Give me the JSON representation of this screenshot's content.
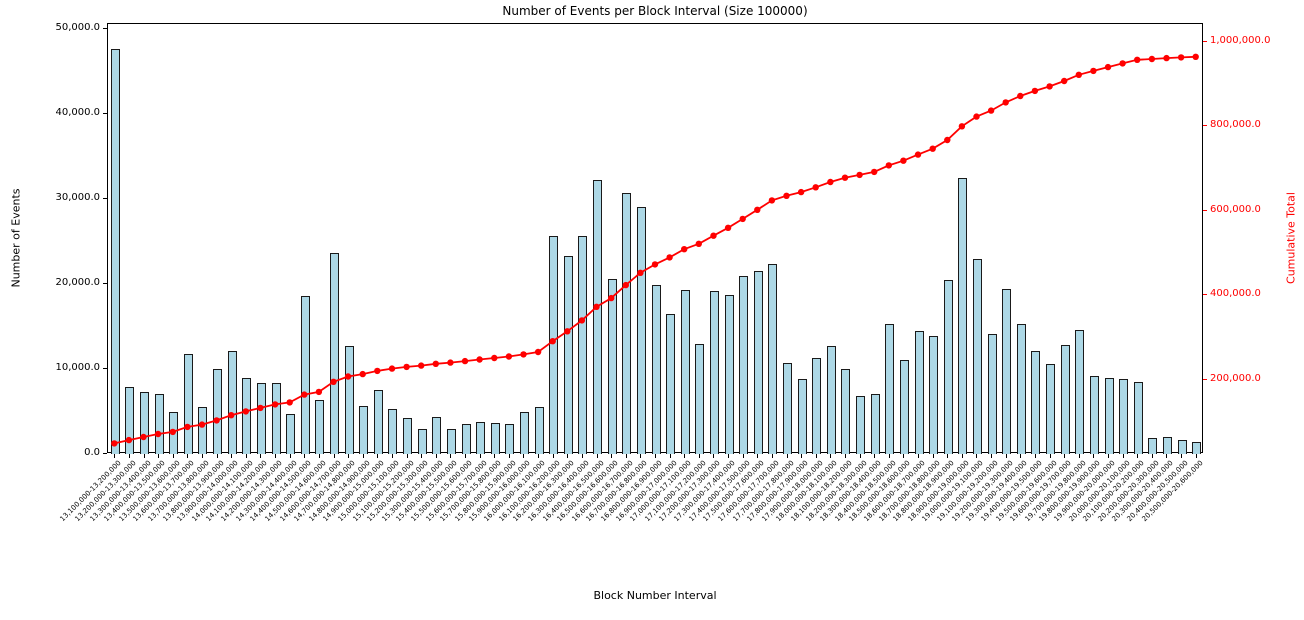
{
  "chart_data": {
    "type": "bar+line",
    "title": "Number of Events per Block Interval (Size 100000)",
    "xlabel": "Block Number Interval",
    "ylabel_left": "Number of Events",
    "ylabel_right": "Cumulative Total",
    "legend_position": "none",
    "grid": false,
    "categories": [
      "13,100,000-13,200,000",
      "13,200,000-13,300,000",
      "13,300,000-13,400,000",
      "13,400,000-13,500,000",
      "13,500,000-13,600,000",
      "13,600,000-13,700,000",
      "13,700,000-13,800,000",
      "13,800,000-13,900,000",
      "13,900,000-14,000,000",
      "14,000,000-14,100,000",
      "14,100,000-14,200,000",
      "14,200,000-14,300,000",
      "14,300,000-14,400,000",
      "14,400,000-14,500,000",
      "14,500,000-14,600,000",
      "14,600,000-14,700,000",
      "14,700,000-14,800,000",
      "14,800,000-14,900,000",
      "14,900,000-15,000,000",
      "15,000,000-15,100,000",
      "15,100,000-15,200,000",
      "15,200,000-15,300,000",
      "15,300,000-15,400,000",
      "15,400,000-15,500,000",
      "15,500,000-15,600,000",
      "15,600,000-15,700,000",
      "15,700,000-15,800,000",
      "15,800,000-15,900,000",
      "15,900,000-16,000,000",
      "16,000,000-16,100,000",
      "16,100,000-16,200,000",
      "16,200,000-16,300,000",
      "16,300,000-16,400,000",
      "16,400,000-16,500,000",
      "16,500,000-16,600,000",
      "16,600,000-16,700,000",
      "16,700,000-16,800,000",
      "16,800,000-16,900,000",
      "16,900,000-17,000,000",
      "17,000,000-17,100,000",
      "17,100,000-17,200,000",
      "17,200,000-17,300,000",
      "17,300,000-17,400,000",
      "17,400,000-17,500,000",
      "17,500,000-17,600,000",
      "17,600,000-17,700,000",
      "17,700,000-17,800,000",
      "17,800,000-17,900,000",
      "17,900,000-18,000,000",
      "18,000,000-18,100,000",
      "18,100,000-18,200,000",
      "18,200,000-18,300,000",
      "18,300,000-18,400,000",
      "18,400,000-18,500,000",
      "18,500,000-18,600,000",
      "18,600,000-18,700,000",
      "18,700,000-18,800,000",
      "18,800,000-18,900,000",
      "18,900,000-19,000,000",
      "19,000,000-19,100,000",
      "19,100,000-19,200,000",
      "19,200,000-19,300,000",
      "19,300,000-19,400,000",
      "19,400,000-19,500,000",
      "19,500,000-19,600,000",
      "19,600,000-19,700,000",
      "19,700,000-19,800,000",
      "19,800,000-19,900,000",
      "19,900,000-20,000,000",
      "20,000,000-20,100,000",
      "20,100,000-20,200,000",
      "20,200,000-20,300,000",
      "20,300,000-20,400,000",
      "20,400,000-20,500,000",
      "20,500,000-20,600,000"
    ],
    "series": [
      {
        "name": "Number of Events",
        "type": "bar",
        "color": "#add8e6",
        "edge_color": "#1a1a1a",
        "values": [
          47700,
          7900,
          7300,
          7100,
          4900,
          11800,
          5500,
          10000,
          12100,
          9000,
          8300,
          8300,
          4700,
          18600,
          6400,
          23700,
          12700,
          5700,
          7500,
          5300,
          4200,
          2900,
          4300,
          2900,
          3500,
          3800,
          3700,
          3500,
          5000,
          5500,
          25700,
          23300,
          25700,
          32300,
          20600,
          30700,
          29100,
          19900,
          16500,
          19300,
          12900,
          19200,
          18700,
          20900,
          21500,
          22400,
          10700,
          8800,
          11300,
          12700,
          10000,
          6800,
          7100,
          15300,
          11100,
          14500,
          13900,
          20500,
          32500,
          22900,
          14100,
          19400,
          15300,
          12100,
          10600,
          12800,
          14600,
          9200,
          9000,
          8800,
          8500,
          1900,
          2000,
          1700,
          1400
        ]
      },
      {
        "name": "Cumulative Total",
        "type": "line",
        "color": "#ff0000",
        "marker": "circle",
        "values": [
          47700,
          55600,
          62900,
          70000,
          74900,
          86700,
          92200,
          102200,
          114300,
          123300,
          131600,
          139900,
          144600,
          163200,
          169600,
          193300,
          206000,
          211700,
          219200,
          224500,
          228700,
          231600,
          235900,
          238800,
          242300,
          246100,
          249800,
          253300,
          258300,
          263800,
          289500,
          312800,
          338500,
          370800,
          391400,
          422100,
          451200,
          471100,
          487600,
          506900,
          519800,
          539000,
          557700,
          578600,
          600100,
          622500,
          633200,
          642000,
          653300,
          666000,
          676000,
          682800,
          689900,
          705200,
          716300,
          730800,
          744700,
          765200,
          797700,
          820600,
          834700,
          854100,
          869400,
          881500,
          892100,
          904900,
          919500,
          928700,
          937700,
          946500,
          955000,
          956900,
          958900,
          960600,
          962000
        ]
      }
    ],
    "left_axis": {
      "min": 0,
      "max": 50600,
      "tick_values": [
        0,
        10000,
        20000,
        30000,
        40000,
        50000
      ],
      "tick_labels": [
        "0.0",
        "10,000.0",
        "20,000.0",
        "30,000.0",
        "40,000.0",
        "50,000.0"
      ],
      "color": "#000000"
    },
    "right_axis": {
      "min": 25000,
      "max": 1042000,
      "tick_values": [
        200000,
        400000,
        600000,
        800000,
        1000000
      ],
      "tick_labels": [
        "200,000.0",
        "400,000.0",
        "600,000.0",
        "800,000.0",
        "1,000,000.0"
      ],
      "color": "#ff0000"
    },
    "background": "#ffffff"
  }
}
